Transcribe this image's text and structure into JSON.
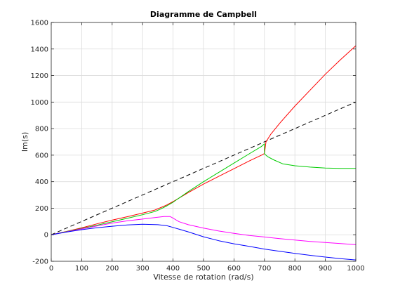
{
  "chart_data": {
    "type": "line",
    "title": "Diagramme de Campbell",
    "xlabel": "Vitesse de rotation (rad/s)",
    "ylabel": "Im(s)",
    "xlim": [
      0,
      1000
    ],
    "ylim": [
      -200,
      1600
    ],
    "xticks": [
      0,
      100,
      200,
      300,
      400,
      500,
      600,
      700,
      800,
      900,
      1000
    ],
    "yticks": [
      -200,
      0,
      200,
      400,
      600,
      800,
      1000,
      1200,
      1400,
      1600
    ],
    "grid": true,
    "series": [
      {
        "color": "#000000",
        "style": "dashed",
        "x": [
          0,
          1000
        ],
        "y": [
          0,
          1000
        ]
      },
      {
        "color": "#ff0000",
        "style": "solid",
        "x": [
          0,
          50,
          100,
          150,
          200,
          250,
          300,
          340,
          360,
          380,
          400,
          450,
          500,
          550,
          600,
          650,
          690,
          700,
          705,
          720,
          750,
          800,
          850,
          900,
          950,
          1000
        ],
        "y": [
          0,
          25,
          52,
          82,
          110,
          136,
          163,
          186,
          205,
          225,
          250,
          318,
          382,
          440,
          498,
          556,
          600,
          612,
          700,
          755,
          840,
          970,
          1090,
          1210,
          1320,
          1425
        ]
      },
      {
        "color": "#00cc00",
        "style": "solid",
        "x": [
          0,
          50,
          100,
          150,
          200,
          250,
          300,
          340,
          360,
          380,
          400,
          450,
          500,
          550,
          600,
          650,
          690,
          700,
          700,
          710,
          730,
          760,
          800,
          850,
          900,
          950,
          1000
        ],
        "y": [
          0,
          24,
          48,
          72,
          98,
          124,
          151,
          175,
          195,
          218,
          245,
          325,
          400,
          470,
          540,
          610,
          665,
          685,
          610,
          590,
          565,
          535,
          520,
          510,
          503,
          500,
          500
        ]
      },
      {
        "color": "#ff00ff",
        "style": "solid",
        "x": [
          0,
          50,
          100,
          150,
          200,
          250,
          300,
          340,
          370,
          390,
          400,
          420,
          450,
          500,
          550,
          600,
          650,
          700,
          750,
          800,
          850,
          900,
          950,
          1000
        ],
        "y": [
          0,
          22,
          44,
          66,
          88,
          105,
          118,
          130,
          138,
          138,
          125,
          98,
          76,
          50,
          28,
          10,
          -5,
          -17,
          -29,
          -40,
          -50,
          -58,
          -66,
          -75
        ]
      },
      {
        "color": "#0000ff",
        "style": "solid",
        "x": [
          0,
          50,
          100,
          150,
          200,
          250,
          300,
          350,
          380,
          400,
          450,
          500,
          550,
          600,
          650,
          700,
          750,
          800,
          850,
          900,
          950,
          1000
        ],
        "y": [
          0,
          20,
          38,
          53,
          64,
          74,
          79,
          76,
          68,
          55,
          22,
          -15,
          -45,
          -68,
          -88,
          -108,
          -125,
          -140,
          -155,
          -168,
          -180,
          -190
        ]
      }
    ]
  }
}
